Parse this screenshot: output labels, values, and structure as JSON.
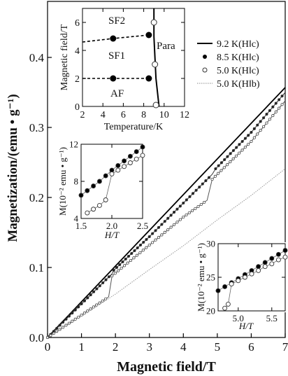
{
  "chart_data": [
    {
      "id": "main",
      "type": "line",
      "xlabel": "Magnetic field/T",
      "ylabel": "Magnetization/(emu • g⁻¹)",
      "xlim": [
        0,
        7
      ],
      "ylim": [
        0,
        0.48
      ],
      "xticks": [
        0,
        1,
        2,
        3,
        4,
        5,
        6,
        7
      ],
      "yticks": [
        0.0,
        0.1,
        0.2,
        0.3,
        0.4
      ],
      "legend_position": "top-right",
      "series": [
        {
          "name": "9.2 K(H‖c)",
          "style": "solid",
          "color": "#000000",
          "x": [
            0,
            1,
            2,
            3,
            4,
            5,
            6,
            7
          ],
          "y": [
            0,
            0.051,
            0.102,
            0.153,
            0.204,
            0.255,
            0.306,
            0.357
          ]
        },
        {
          "name": "8.5 K(H‖c)",
          "style": "filled-dots",
          "color": "#000000",
          "x": [
            0,
            1,
            1.9,
            1.95,
            3,
            4,
            4.85,
            4.95,
            6,
            7
          ],
          "y": [
            0,
            0.048,
            0.091,
            0.096,
            0.144,
            0.192,
            0.233,
            0.241,
            0.293,
            0.35
          ]
        },
        {
          "name": "5.0 K(H‖c)",
          "style": "open-circles",
          "color": "#333333",
          "x": [
            0,
            1,
            1.8,
            1.9,
            3,
            4,
            4.7,
            4.85,
            6,
            7
          ],
          "y": [
            0,
            0.032,
            0.058,
            0.088,
            0.132,
            0.172,
            0.196,
            0.226,
            0.28,
            0.338
          ]
        },
        {
          "name": "5.0 K(H‖b)",
          "style": "thin",
          "color": "#888888",
          "x": [
            0,
            1,
            2,
            3,
            4,
            5,
            6,
            7
          ],
          "y": [
            0,
            0.03,
            0.062,
            0.097,
            0.131,
            0.168,
            0.203,
            0.241
          ]
        }
      ]
    },
    {
      "id": "phase",
      "type": "line",
      "xlabel": "Temperature/K",
      "ylabel": "Magnetic field/T",
      "xlim": [
        2,
        12
      ],
      "ylim": [
        0,
        7
      ],
      "xticks": [
        2,
        4,
        6,
        8,
        10,
        12
      ],
      "yticks": [
        0,
        2,
        4,
        6
      ],
      "annotations": [
        "SF2",
        "SF1",
        "AF",
        "Para"
      ],
      "series": [
        {
          "name": "",
          "style": "dashed",
          "x": [
            2,
            5,
            8.5
          ],
          "y": [
            2.0,
            2.0,
            2.0
          ]
        },
        {
          "name": "",
          "style": "dashed",
          "x": [
            2,
            5,
            8.5
          ],
          "y": [
            4.6,
            4.85,
            5.1
          ]
        },
        {
          "name": "",
          "style": "solid",
          "x": [
            9.0,
            9.0,
            9.2,
            9.5
          ],
          "y": [
            7,
            5,
            2,
            0
          ]
        }
      ],
      "filled_points": [
        {
          "x": 5,
          "y": 2.0
        },
        {
          "x": 8.5,
          "y": 2.0
        },
        {
          "x": 5,
          "y": 4.85
        },
        {
          "x": 8.5,
          "y": 5.1
        }
      ],
      "open_points": [
        {
          "x": 9.0,
          "y": 6.0
        },
        {
          "x": 9.1,
          "y": 3.0
        },
        {
          "x": 9.2,
          "y": 0.1
        }
      ]
    },
    {
      "id": "inset1",
      "type": "scatter",
      "xlabel": "H/T",
      "ylabel": "M(10⁻² emu • g⁻¹)",
      "xlim": [
        1.5,
        2.5
      ],
      "ylim": [
        4,
        12
      ],
      "xticks": [
        "1.5",
        "2.0",
        "2.5"
      ],
      "yticks": [
        "4",
        "8",
        "12"
      ],
      "series": [
        {
          "name": "8.5 K",
          "style": "filled-dots",
          "x": [
            1.5,
            1.6,
            1.7,
            1.8,
            1.9,
            2.0,
            2.1,
            2.2,
            2.3,
            2.4,
            2.5
          ],
          "y": [
            6.5,
            7.0,
            7.5,
            8.0,
            8.6,
            9.2,
            9.7,
            10.2,
            10.7,
            11.2,
            11.7
          ]
        },
        {
          "name": "5.0 K",
          "style": "open-circles",
          "x": [
            1.6,
            1.7,
            1.8,
            1.9,
            2.0,
            2.1,
            2.2,
            2.3,
            2.4,
            2.5
          ],
          "y": [
            4.6,
            5.0,
            5.4,
            6.0,
            8.8,
            9.2,
            9.6,
            10.0,
            10.4,
            10.8
          ]
        }
      ]
    },
    {
      "id": "inset2",
      "type": "scatter",
      "xlabel": "H/T",
      "ylabel": "M(10⁻² emu • g⁻¹)",
      "xlim": [
        4.7,
        5.7
      ],
      "ylim": [
        20,
        30
      ],
      "xticks": [
        "5.0",
        "5.5"
      ],
      "yticks": [
        "20",
        "25",
        "30"
      ],
      "series": [
        {
          "name": "8.5 K",
          "style": "filled-dots",
          "x": [
            4.7,
            4.8,
            4.9,
            5.0,
            5.1,
            5.2,
            5.3,
            5.4,
            5.5,
            5.6,
            5.7
          ],
          "y": [
            23.0,
            23.6,
            24.2,
            24.8,
            25.4,
            26.0,
            26.6,
            27.2,
            27.8,
            28.4,
            29.0
          ]
        },
        {
          "name": "5.0 K",
          "style": "open-circles",
          "x": [
            4.8,
            4.85,
            4.9,
            5.0,
            5.1,
            5.2,
            5.3,
            5.4,
            5.5,
            5.6,
            5.7
          ],
          "y": [
            20.4,
            21.0,
            24.0,
            24.5,
            25.0,
            25.5,
            26.0,
            26.6,
            27.0,
            27.6,
            28.0
          ]
        }
      ]
    }
  ]
}
